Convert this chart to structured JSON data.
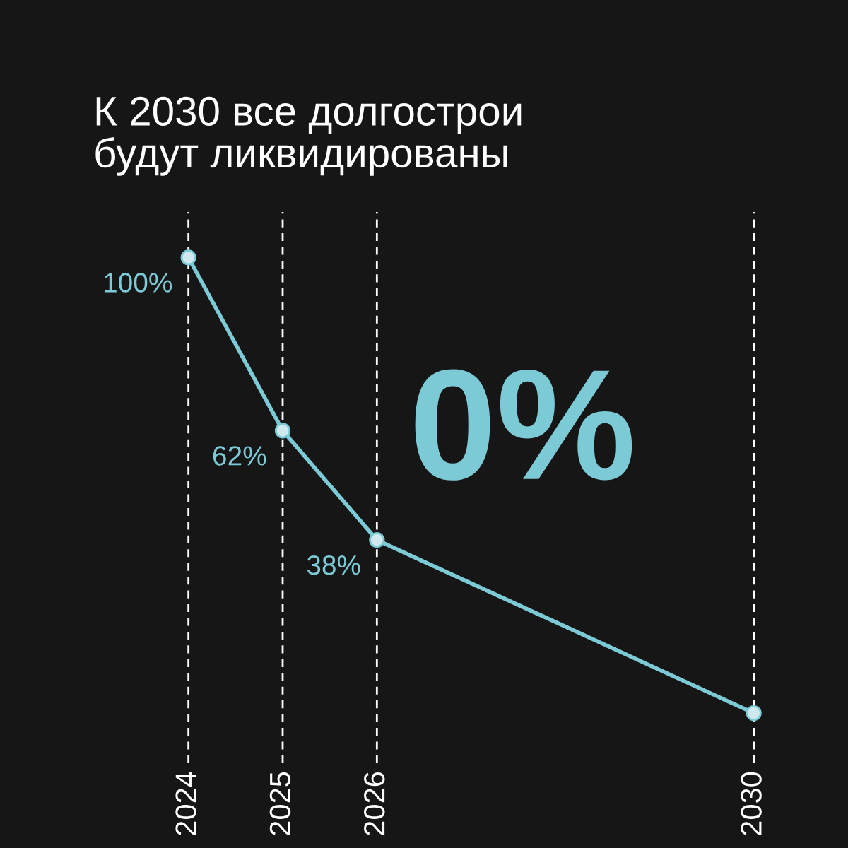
{
  "chart_data": {
    "type": "line",
    "title": "К 2030 все долгострои\nбудут ликвидированы",
    "x": [
      "2024",
      "2025",
      "2026",
      "2030"
    ],
    "series": [
      {
        "color": "#7ccad6",
        "values": [
          100,
          62,
          38,
          0
        ],
        "value_labels": [
          "100%",
          "62%",
          "38%",
          null
        ]
      }
    ],
    "annotations": [
      {
        "text": "0%",
        "x": "2030",
        "y": 0
      }
    ],
    "xlim": [
      "2022",
      "2031"
    ],
    "xticks": [
      "2024",
      "2025",
      "2026",
      "2030"
    ],
    "ylim": [
      -11,
      110
    ],
    "tick_labels": "x",
    "grid": "x",
    "marker": "circle",
    "line_style": "solid"
  }
}
